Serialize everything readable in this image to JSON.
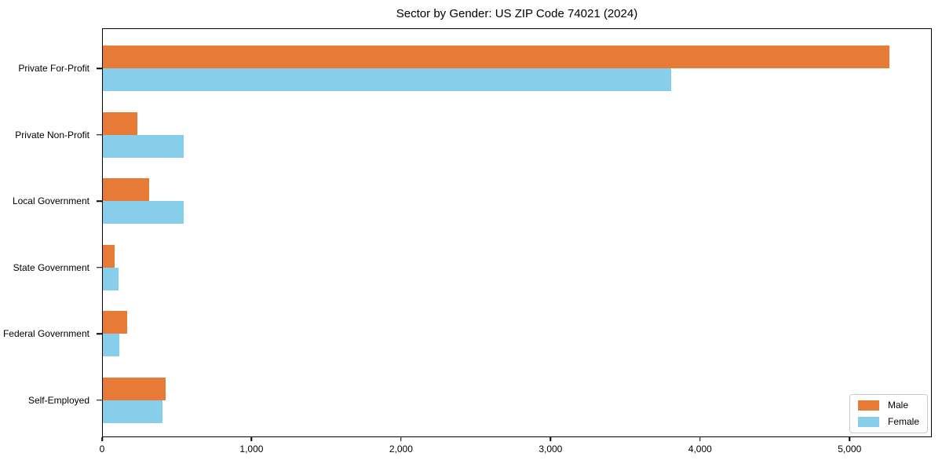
{
  "chart_data": {
    "type": "bar",
    "orientation": "horizontal",
    "title": "Sector by Gender: US ZIP Code 74021 (2024)",
    "xlabel": "",
    "ylabel": "",
    "categories": [
      "Private For-Profit",
      "Private Non-Profit",
      "Local Government",
      "State Government",
      "Federal Government",
      "Self-Employed"
    ],
    "series": [
      {
        "name": "Male",
        "color": "#e87a38",
        "values": [
          5270,
          230,
          310,
          80,
          165,
          420
        ]
      },
      {
        "name": "Female",
        "color": "#87ceeb",
        "values": [
          3810,
          540,
          540,
          105,
          110,
          400
        ]
      }
    ],
    "xlim": [
      0,
      5550
    ],
    "x_ticks": [
      0,
      1000,
      2000,
      3000,
      4000,
      5000
    ],
    "x_tick_labels": [
      "0",
      "1,000",
      "2,000",
      "3,000",
      "4,000",
      "5,000"
    ],
    "grid": false,
    "legend_position": "lower right",
    "plot_border": true
  }
}
